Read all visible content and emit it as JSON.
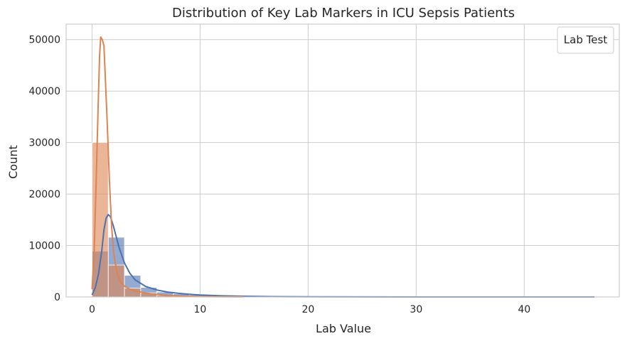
{
  "chart_data": {
    "type": "histogram",
    "title": "Distribution of Key Lab Markers in ICU Sepsis Patients",
    "xlabel": "Lab Value",
    "ylabel": "Count",
    "xlim": [
      -2.4,
      48.8
    ],
    "ylim": [
      0,
      53000
    ],
    "xticks": [
      0,
      10,
      20,
      30,
      40
    ],
    "yticks": [
      0,
      10000,
      20000,
      30000,
      40000,
      50000
    ],
    "grid": true,
    "legend": {
      "title": "Lab Test",
      "placement": "top-right",
      "entries": []
    },
    "bin_width": 1.5,
    "series": [
      {
        "color": "#4c72b0",
        "bins": [
          [
            0.0,
            8900
          ],
          [
            1.5,
            11600
          ],
          [
            3.0,
            4200
          ],
          [
            4.5,
            1850
          ],
          [
            6.0,
            950
          ],
          [
            7.5,
            600
          ],
          [
            9.0,
            380
          ],
          [
            10.5,
            250
          ],
          [
            12.0,
            170
          ],
          [
            13.5,
            120
          ],
          [
            15.0,
            90
          ],
          [
            16.5,
            60
          ],
          [
            18.0,
            45
          ],
          [
            19.5,
            30
          ],
          [
            21.0,
            20
          ],
          [
            22.5,
            15
          ],
          [
            24.0,
            10
          ],
          [
            25.5,
            8
          ],
          [
            27.0,
            6
          ],
          [
            28.5,
            5
          ],
          [
            30.0,
            4
          ],
          [
            31.5,
            3
          ],
          [
            33.0,
            3
          ],
          [
            34.5,
            2
          ],
          [
            36.0,
            2
          ],
          [
            37.5,
            2
          ],
          [
            39.0,
            1
          ],
          [
            40.5,
            1
          ],
          [
            42.0,
            1
          ],
          [
            43.5,
            1
          ],
          [
            45.0,
            1
          ]
        ],
        "kde": [
          [
            0.0,
            400
          ],
          [
            0.3,
            1800
          ],
          [
            0.6,
            4500
          ],
          [
            0.9,
            9000
          ],
          [
            1.1,
            13000
          ],
          [
            1.3,
            15300
          ],
          [
            1.5,
            16000
          ],
          [
            1.7,
            15600
          ],
          [
            2.0,
            13600
          ],
          [
            2.5,
            9600
          ],
          [
            3.0,
            6600
          ],
          [
            3.5,
            4600
          ],
          [
            4.0,
            3300
          ],
          [
            5.0,
            2000
          ],
          [
            6.0,
            1350
          ],
          [
            7.0,
            950
          ],
          [
            8.0,
            700
          ],
          [
            9.0,
            520
          ],
          [
            10.0,
            380
          ],
          [
            12.0,
            230
          ],
          [
            14.0,
            140
          ],
          [
            16.0,
            85
          ],
          [
            18.0,
            55
          ],
          [
            20.0,
            35
          ],
          [
            25.0,
            15
          ],
          [
            30.0,
            8
          ],
          [
            35.0,
            5
          ],
          [
            40.0,
            3
          ],
          [
            46.5,
            2
          ]
        ]
      },
      {
        "color": "#dd8452",
        "bins": [
          [
            0.0,
            30000
          ],
          [
            1.5,
            6200
          ],
          [
            3.0,
            1700
          ],
          [
            4.5,
            800
          ],
          [
            6.0,
            300
          ],
          [
            7.5,
            150
          ],
          [
            9.0,
            80
          ],
          [
            10.5,
            40
          ],
          [
            12.0,
            20
          ],
          [
            13.5,
            10
          ]
        ],
        "kde": [
          [
            0.0,
            1500
          ],
          [
            0.2,
            9000
          ],
          [
            0.4,
            24000
          ],
          [
            0.6,
            40000
          ],
          [
            0.7,
            47000
          ],
          [
            0.8,
            50500
          ],
          [
            0.95,
            50000
          ],
          [
            1.1,
            48800
          ],
          [
            1.2,
            44000
          ],
          [
            1.4,
            34000
          ],
          [
            1.6,
            23000
          ],
          [
            1.8,
            14000
          ],
          [
            2.0,
            8500
          ],
          [
            2.3,
            4800
          ],
          [
            2.6,
            3000
          ],
          [
            3.0,
            2100
          ],
          [
            3.5,
            1500
          ],
          [
            4.0,
            1150
          ],
          [
            5.0,
            750
          ],
          [
            6.0,
            480
          ],
          [
            7.0,
            300
          ],
          [
            8.0,
            190
          ],
          [
            9.0,
            120
          ],
          [
            10.0,
            75
          ],
          [
            12.0,
            30
          ],
          [
            14.0,
            10
          ]
        ]
      }
    ]
  }
}
